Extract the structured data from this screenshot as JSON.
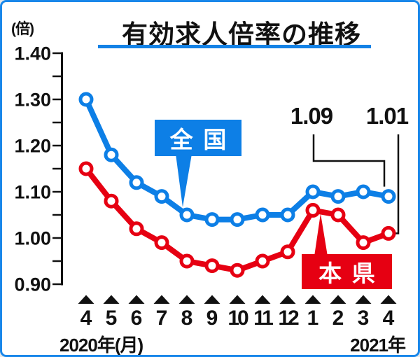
{
  "colors": {
    "national": "#0d7fe6",
    "prefecture": "#e60012",
    "frame_border": "#1987ea",
    "title_underline": "#1482e6",
    "ink": "#111111"
  },
  "header": {
    "unit_label": "(倍)"
  },
  "chart_data": {
    "type": "line",
    "title": "有効求人倍率の推移",
    "ylabel": "倍",
    "ylim": [
      0.9,
      1.4
    ],
    "ytick_labels": [
      "1.40",
      "1.30",
      "1.20",
      "1.10",
      "1.00",
      "0.90"
    ],
    "ytick_minor_step": 0.05,
    "categories": [
      "4",
      "5",
      "6",
      "7",
      "8",
      "9",
      "10",
      "11",
      "12",
      "1",
      "2",
      "3",
      "4"
    ],
    "x_note_left": "2020年(月)",
    "x_note_right": "2021年",
    "legend_position": "inline-callouts",
    "grid": false,
    "series": [
      {
        "name": "全国",
        "color": "#0d7fe6",
        "values": [
          1.3,
          1.18,
          1.12,
          1.09,
          1.05,
          1.04,
          1.04,
          1.05,
          1.05,
          1.1,
          1.09,
          1.1,
          1.09
        ]
      },
      {
        "name": "本県",
        "color": "#e60012",
        "values": [
          1.15,
          1.08,
          1.02,
          0.99,
          0.95,
          0.94,
          0.93,
          0.95,
          0.97,
          1.06,
          1.05,
          0.99,
          1.01
        ]
      }
    ],
    "annotations": [
      {
        "text": "1.09",
        "series": "全国",
        "category": "4",
        "year_note": "2021年"
      },
      {
        "text": "1.01",
        "series": "本県",
        "category": "4",
        "year_note": "2021年"
      }
    ]
  }
}
